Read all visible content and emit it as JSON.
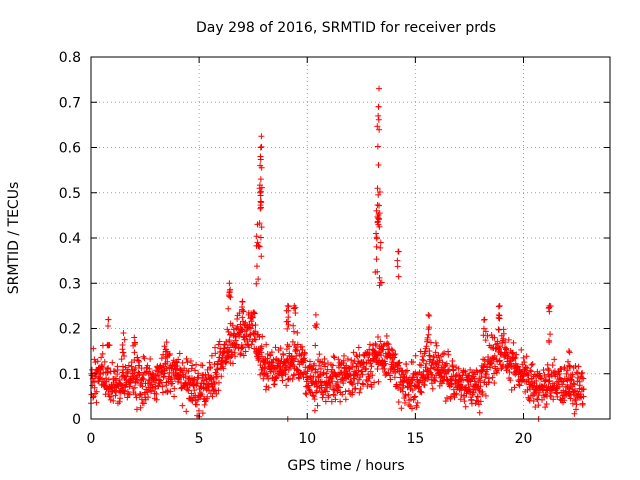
{
  "chart_data": {
    "type": "scatter",
    "title": "Day 298 of 2016, SRMTID for receiver prds",
    "xlabel": "GPS time / hours",
    "ylabel": "SRMTID / TECUs",
    "xlim": [
      0,
      24
    ],
    "ylim": [
      0,
      0.8
    ],
    "x_ticks": [
      0,
      5,
      10,
      15,
      20
    ],
    "x_tick_labels": [
      "0",
      "5",
      "10",
      "15",
      "20"
    ],
    "y_ticks": [
      0,
      0.1,
      0.2,
      0.3,
      0.4,
      0.5,
      0.6,
      0.7,
      0.8
    ],
    "y_tick_labels": [
      "0",
      "0.1",
      "0.2",
      "0.3",
      "0.4",
      "0.5",
      "0.6",
      "0.7",
      "0.8"
    ],
    "grid": true,
    "marker": "+",
    "color": "#ff0000",
    "series": [
      {
        "name": "SRMTID",
        "description": "approximately 2800 observations between 0 and 22.8 hours, sampled at roughly 30 s",
        "baseline": [
          [
            0,
            0.09
          ],
          [
            0.5,
            0.1
          ],
          [
            1,
            0.08
          ],
          [
            1.5,
            0.085
          ],
          [
            2,
            0.09
          ],
          [
            2.5,
            0.085
          ],
          [
            3,
            0.09
          ],
          [
            3.5,
            0.1
          ],
          [
            4,
            0.1
          ],
          [
            4.5,
            0.08
          ],
          [
            5,
            0.06
          ],
          [
            5.5,
            0.08
          ],
          [
            6,
            0.13
          ],
          [
            6.5,
            0.17
          ],
          [
            7,
            0.18
          ],
          [
            7.5,
            0.2
          ],
          [
            8,
            0.12
          ],
          [
            8.5,
            0.11
          ],
          [
            9,
            0.12
          ],
          [
            9.5,
            0.14
          ],
          [
            10,
            0.09
          ],
          [
            10.5,
            0.085
          ],
          [
            11,
            0.08
          ],
          [
            11.5,
            0.09
          ],
          [
            12,
            0.1
          ],
          [
            12.5,
            0.11
          ],
          [
            13,
            0.12
          ],
          [
            13.5,
            0.14
          ],
          [
            14,
            0.11
          ],
          [
            14.5,
            0.08
          ],
          [
            15,
            0.07
          ],
          [
            15.5,
            0.12
          ],
          [
            16,
            0.11
          ],
          [
            16.5,
            0.09
          ],
          [
            17,
            0.08
          ],
          [
            17.5,
            0.07
          ],
          [
            18,
            0.08
          ],
          [
            18.5,
            0.14
          ],
          [
            19,
            0.15
          ],
          [
            19.5,
            0.12
          ],
          [
            20,
            0.1
          ],
          [
            20.5,
            0.07
          ],
          [
            21,
            0.07
          ],
          [
            21.5,
            0.08
          ],
          [
            22,
            0.07
          ],
          [
            22.5,
            0.07
          ],
          [
            22.8,
            0.065
          ]
        ],
        "spread": 0.035,
        "peaks": [
          [
            0.8,
            0.22
          ],
          [
            1.5,
            0.19
          ],
          [
            2.0,
            0.18
          ],
          [
            3.5,
            0.17
          ],
          [
            6.4,
            0.3
          ],
          [
            7.0,
            0.26
          ],
          [
            7.7,
            0.43
          ],
          [
            7.8,
            0.51
          ],
          [
            7.82,
            0.56
          ],
          [
            7.85,
            0.6
          ],
          [
            7.88,
            0.625
          ],
          [
            9.1,
            0.25
          ],
          [
            9.4,
            0.25
          ],
          [
            10.4,
            0.23
          ],
          [
            13.2,
            0.46
          ],
          [
            13.25,
            0.51
          ],
          [
            13.28,
            0.67
          ],
          [
            13.3,
            0.69
          ],
          [
            13.32,
            0.73
          ],
          [
            13.4,
            0.39
          ],
          [
            14.2,
            0.37
          ],
          [
            15.6,
            0.23
          ],
          [
            18.2,
            0.22
          ],
          [
            18.9,
            0.25
          ],
          [
            21.2,
            0.25
          ],
          [
            22.1,
            0.15
          ]
        ],
        "low_outliers": [
          [
            9.1,
            0.0
          ],
          [
            20.7,
            0.0
          ]
        ]
      }
    ]
  }
}
